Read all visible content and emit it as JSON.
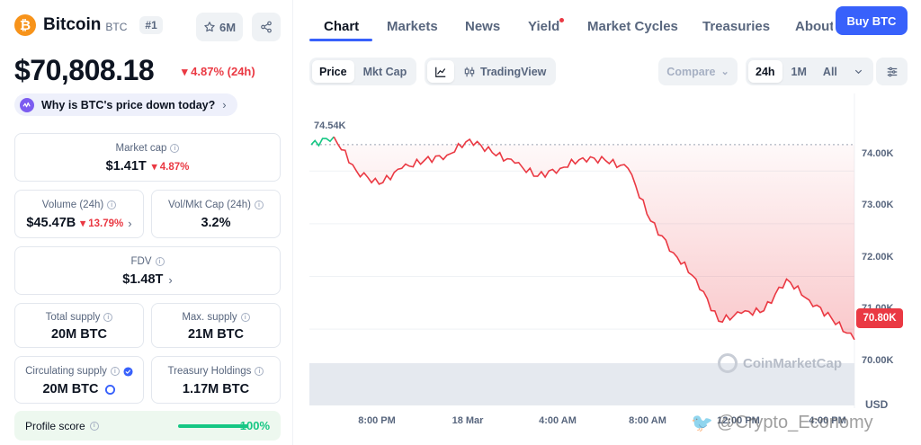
{
  "coin": {
    "name": "Bitcoin",
    "symbol": "BTC",
    "rank": "#1",
    "logo_glyph": "₿",
    "watchlist_count": "6M",
    "price": "$70,808.18",
    "price_change": "4.87% (24h)",
    "why_text": "Why is BTC's price down today?"
  },
  "stats": {
    "market_cap": {
      "label": "Market cap",
      "value": "$1.41T",
      "change": "4.87%"
    },
    "volume": {
      "label": "Volume (24h)",
      "value": "$45.47B",
      "change": "13.79%"
    },
    "vol_mkt_cap": {
      "label": "Vol/Mkt Cap (24h)",
      "value": "3.2%"
    },
    "fdv": {
      "label": "FDV",
      "value": "$1.48T"
    },
    "total_supply": {
      "label": "Total supply",
      "value": "20M BTC"
    },
    "max_supply": {
      "label": "Max. supply",
      "value": "21M BTC"
    },
    "circulating_supply": {
      "label": "Circulating supply",
      "value": "20M BTC"
    },
    "treasury_holdings": {
      "label": "Treasury Holdings",
      "value": "1.17M BTC"
    }
  },
  "profile": {
    "label": "Profile score",
    "value": "100%",
    "fraction": 1.0
  },
  "tabs": [
    "Chart",
    "Markets",
    "News",
    "Yield",
    "Market Cycles",
    "Treasuries",
    "About"
  ],
  "buy_label": "Buy BTC",
  "toolbar": {
    "price_label": "Price",
    "mktcap_label": "Mkt Cap",
    "tradingview_label": "TradingView",
    "compare_label": "Compare",
    "ranges": [
      "24h",
      "1M",
      "All"
    ]
  },
  "chart_data": {
    "type": "line",
    "series": [
      {
        "x": [
          "17 Mar 17:00",
          "17 Mar 18:00",
          "17 Mar 19:00",
          "17 Mar 20:00",
          "17 Mar 21:00",
          "17 Mar 22:00",
          "17 Mar 23:00",
          "18 Mar 00:00",
          "18 Mar 01:00",
          "18 Mar 02:00",
          "18 Mar 03:00",
          "18 Mar 04:00",
          "18 Mar 05:00",
          "18 Mar 06:00",
          "18 Mar 07:00",
          "18 Mar 08:00",
          "18 Mar 09:00",
          "18 Mar 10:00",
          "18 Mar 11:00",
          "18 Mar 12:00",
          "18 Mar 13:00",
          "18 Mar 14:00",
          "18 Mar 15:00",
          "18 Mar 16:00",
          "18 Mar 17:00"
        ],
        "y": [
          74500,
          74650,
          74000,
          73750,
          74050,
          74200,
          74300,
          74600,
          74350,
          74150,
          73900,
          74050,
          74250,
          74200,
          74050,
          73050,
          72450,
          71950,
          71150,
          71300,
          71350,
          71950,
          71550,
          71200,
          70800
        ]
      }
    ],
    "start_value_label": "74.54K",
    "current_value_label": "70.80K",
    "y_ticks": [
      "74.00K",
      "73.00K",
      "72.00K",
      "71.00K",
      "70.00K"
    ],
    "x_ticks": [
      "8:00 PM",
      "18 Mar",
      "4:00 AM",
      "8:00 AM",
      "12:00 PM",
      "4:00 PM"
    ],
    "y_unit": "USD",
    "ylim": [
      69500,
      75300
    ],
    "grid": true,
    "up_color": "#16c784",
    "down_color": "#ea3943",
    "watermark": "CoinMarketCap"
  },
  "overlay_watermark": "@Crypto_Economy",
  "colors": {
    "accent": "#3861fb",
    "negative": "#ea3943",
    "positive": "#16c784",
    "bitcoin": "#f7931a"
  }
}
